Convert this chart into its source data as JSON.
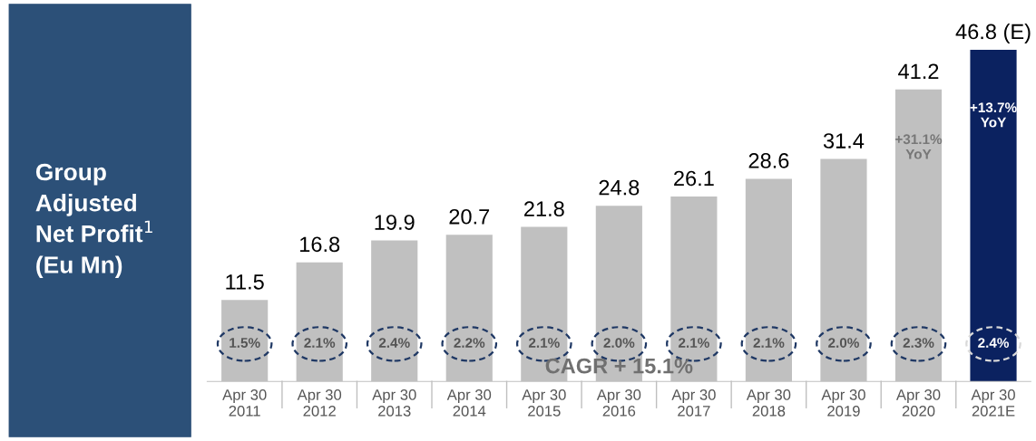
{
  "chart_data": {
    "type": "bar",
    "title": "Group\nAdjusted\nNet Profit$^{1}$\n(Eu Mn)",
    "categories": [
      "Apr 30\n2011",
      "Apr 30\n2012",
      "Apr 30\n2013",
      "Apr 30\n2014",
      "Apr 30\n2015",
      "Apr 30\n2016",
      "Apr 30\n2017",
      "Apr 30\n2018",
      "Apr 30\n2019",
      "Apr 30\n2020",
      "Apr 30\n2021E"
    ],
    "values": [
      11.5,
      16.8,
      19.9,
      20.7,
      21.8,
      24.8,
      26.1,
      28.6,
      31.4,
      41.2,
      46.8
    ],
    "colors": [
      "#c0c0c0",
      "#c0c0c0",
      "#c0c0c0",
      "#c0c0c0",
      "#c0c0c0",
      "#c0c0c0",
      "#c0c0c0",
      "#c0c0c0",
      "#c0c0c0",
      "#c0c0c0",
      "#0b2260"
    ],
    "value_labels": [
      "11.5",
      "16.8",
      "19.9",
      "20.7",
      "21.8",
      "24.8",
      "26.1",
      "28.6",
      "31.4",
      "41.2",
      "46.8 (E)"
    ],
    "annotations": [
      "1.5%",
      "2.1%",
      "2.4%",
      "2.2%",
      "2.1%",
      "2.0%",
      "2.1%",
      "2.1%",
      "2.0%",
      "2.3%",
      "2.4%",
      "+31.1%\nYoY",
      "+13.7%\nYoY",
      "CAGR + 15.1%"
    ]
  }
}
